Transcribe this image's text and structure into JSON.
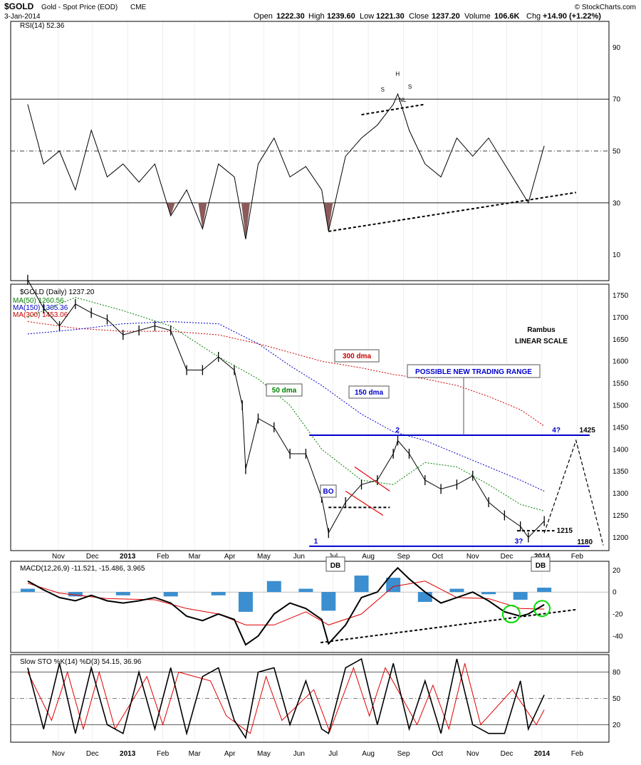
{
  "header": {
    "symbol": "$GOLD",
    "name": "Gold - Spot Price (EOD)",
    "exchange": "CME",
    "date": "3-Jan-2014",
    "open_label": "Open",
    "open": "1222.30",
    "high_label": "High",
    "high": "1239.60",
    "low_label": "Low",
    "low": "1221.30",
    "close_label": "Close",
    "close": "1237.20",
    "volume_label": "Volume",
    "volume": "106.6K",
    "chg_label": "Chg",
    "chg": "+14.90 (+1.22%)",
    "watermark": "© StockCharts.com"
  },
  "colors": {
    "price": "#000000",
    "ma50": "#008000",
    "ma150": "#0000cc",
    "ma300": "#cc0000",
    "rsi_fill": "#8b5a5a",
    "macd_hist": "#3b8fd0",
    "macd_signal": "#e00000",
    "trading_range": "#0000cc",
    "circle": "#00dd00",
    "grid": "#000000"
  },
  "chart_data": [
    {
      "type": "line",
      "title": "RSI(14) 52.36",
      "ylim": [
        0,
        100
      ],
      "y_ticks": [
        "90",
        "70",
        "50",
        "30",
        "10"
      ],
      "hlines": [
        70,
        50,
        30
      ],
      "series": [
        {
          "name": "RSI(14)",
          "x": [
            "2012-10-05",
            "2012-10-19",
            "2012-11-02",
            "2012-11-16",
            "2012-11-30",
            "2012-12-14",
            "2012-12-28",
            "2013-01-11",
            "2013-01-25",
            "2013-02-08",
            "2013-02-22",
            "2013-03-08",
            "2013-03-22",
            "2013-04-05",
            "2013-04-15",
            "2013-04-26",
            "2013-05-10",
            "2013-05-24",
            "2013-06-07",
            "2013-06-21",
            "2013-06-27",
            "2013-07-12",
            "2013-07-26",
            "2013-08-09",
            "2013-08-23",
            "2013-08-27",
            "2013-09-06",
            "2013-09-20",
            "2013-10-04",
            "2013-10-18",
            "2013-11-01",
            "2013-11-15",
            "2013-11-29",
            "2013-12-13",
            "2013-12-20",
            "2014-01-03"
          ],
          "values": [
            68,
            45,
            50,
            35,
            58,
            40,
            45,
            38,
            45,
            25,
            35,
            20,
            45,
            40,
            16,
            45,
            55,
            40,
            44,
            35,
            19,
            48,
            55,
            60,
            68,
            72,
            58,
            45,
            40,
            55,
            48,
            55,
            45,
            35,
            30,
            52
          ]
        }
      ],
      "pattern_labels": [
        "S",
        "H",
        "S",
        "NL"
      ]
    },
    {
      "type": "line",
      "title": "$GOLD (Daily) 1237.20",
      "legend": [
        "MA(50) 1260.56",
        "MA(150) 1305.36",
        "MA(300) 1453.06"
      ],
      "ylim": [
        1170,
        1775
      ],
      "y_ticks": [
        1750,
        1700,
        1650,
        1600,
        1550,
        1500,
        1450,
        1400,
        1350,
        1300,
        1250,
        1200
      ],
      "x_ticks": [
        "Nov",
        "Dec",
        "2013",
        "Feb",
        "Mar",
        "Apr",
        "May",
        "Jun",
        "Jul",
        "Aug",
        "Sep",
        "Oct",
        "Nov",
        "Dec",
        "2014",
        "Feb"
      ],
      "series": [
        {
          "name": "$GOLD",
          "x": [
            "2012-10-05",
            "2012-10-19",
            "2012-11-02",
            "2012-11-16",
            "2012-11-30",
            "2012-12-14",
            "2012-12-28",
            "2013-01-11",
            "2013-01-25",
            "2013-02-08",
            "2013-02-22",
            "2013-03-08",
            "2013-03-22",
            "2013-04-05",
            "2013-04-12",
            "2013-04-15",
            "2013-04-26",
            "2013-05-10",
            "2013-05-24",
            "2013-06-07",
            "2013-06-21",
            "2013-06-27",
            "2013-07-12",
            "2013-07-26",
            "2013-08-09",
            "2013-08-23",
            "2013-08-27",
            "2013-09-06",
            "2013-09-20",
            "2013-10-04",
            "2013-10-18",
            "2013-11-01",
            "2013-11-15",
            "2013-11-29",
            "2013-12-13",
            "2013-12-20",
            "2014-01-03"
          ],
          "values": [
            1785,
            1720,
            1680,
            1730,
            1710,
            1695,
            1660,
            1670,
            1680,
            1670,
            1580,
            1580,
            1610,
            1580,
            1500,
            1355,
            1470,
            1450,
            1390,
            1390,
            1290,
            1210,
            1280,
            1320,
            1330,
            1390,
            1420,
            1390,
            1330,
            1310,
            1320,
            1340,
            1280,
            1250,
            1225,
            1200,
            1237
          ]
        },
        {
          "name": "MA(50) 1260.56",
          "x": [
            "2012-10-05",
            "2012-11-16",
            "2012-12-28",
            "2013-02-08",
            "2013-03-22",
            "2013-04-26",
            "2013-05-24",
            "2013-06-21",
            "2013-07-26",
            "2013-08-23",
            "2013-09-20",
            "2013-10-18",
            "2013-11-15",
            "2013-12-13",
            "2014-01-03"
          ],
          "values": [
            1700,
            1745,
            1715,
            1680,
            1610,
            1560,
            1500,
            1400,
            1330,
            1320,
            1370,
            1360,
            1320,
            1275,
            1260
          ]
        },
        {
          "name": "MA(150) 1305.36",
          "x": [
            "2012-10-05",
            "2012-11-16",
            "2012-12-28",
            "2013-02-08",
            "2013-03-22",
            "2013-04-26",
            "2013-05-24",
            "2013-06-21",
            "2013-07-26",
            "2013-08-23",
            "2013-09-20",
            "2013-10-18",
            "2013-11-15",
            "2013-12-13",
            "2014-01-03"
          ],
          "values": [
            1662,
            1672,
            1685,
            1690,
            1685,
            1640,
            1590,
            1545,
            1480,
            1440,
            1420,
            1390,
            1360,
            1330,
            1305
          ]
        },
        {
          "name": "MA(300) 1453.06",
          "x": [
            "2012-10-05",
            "2012-11-16",
            "2012-12-28",
            "2013-02-08",
            "2013-03-22",
            "2013-04-26",
            "2013-05-24",
            "2013-06-21",
            "2013-07-26",
            "2013-08-23",
            "2013-09-20",
            "2013-10-18",
            "2013-11-15",
            "2013-12-13",
            "2014-01-03"
          ],
          "values": [
            1690,
            1675,
            1668,
            1668,
            1660,
            1640,
            1620,
            1600,
            1585,
            1570,
            1560,
            1545,
            1520,
            1490,
            1453
          ]
        }
      ],
      "annotations": {
        "author": "Rambus",
        "scale": "LINEAR SCALE",
        "ma300_label": "300 dma",
        "ma150_label": "150 dma",
        "ma50_label": "50 dma",
        "range_label": "POSSIBLE NEW TRADING RANGE",
        "bo_label": "BO",
        "db1_label": "DB",
        "db2_label": "DB",
        "pt1_label": "1",
        "pt2_label": "2",
        "pt3_label": "3?",
        "pt4_label": "4?",
        "lvl_1425": "1425",
        "lvl_1215": "1215",
        "lvl_1180": "1180",
        "range_top": 1432,
        "range_bottom": 1180,
        "neckline": 1268,
        "resistance_1215": 1215
      }
    },
    {
      "type": "line",
      "title": "MACD(12,26,9) -11.521, -15.486, 3.965",
      "ylim": [
        -55,
        28
      ],
      "y_ticks": [
        20,
        0,
        -20,
        -40
      ],
      "series": [
        {
          "name": "MACD",
          "x": [
            "2012-10-05",
            "2012-10-19",
            "2012-11-02",
            "2012-11-16",
            "2012-11-30",
            "2012-12-14",
            "2012-12-28",
            "2013-01-11",
            "2013-01-25",
            "2013-02-08",
            "2013-02-22",
            "2013-03-08",
            "2013-03-22",
            "2013-04-05",
            "2013-04-15",
            "2013-04-26",
            "2013-05-10",
            "2013-05-24",
            "2013-06-07",
            "2013-06-21",
            "2013-06-27",
            "2013-07-12",
            "2013-07-26",
            "2013-08-09",
            "2013-08-23",
            "2013-08-27",
            "2013-09-06",
            "2013-09-20",
            "2013-10-04",
            "2013-10-18",
            "2013-11-01",
            "2013-11-15",
            "2013-11-29",
            "2013-12-13",
            "2013-12-20",
            "2014-01-03"
          ],
          "values": [
            10,
            2,
            -5,
            -8,
            -3,
            -8,
            -10,
            -8,
            -5,
            -10,
            -22,
            -26,
            -20,
            -25,
            -48,
            -40,
            -20,
            -10,
            -15,
            -25,
            -47,
            -30,
            -5,
            0,
            18,
            22,
            12,
            0,
            -10,
            -5,
            0,
            -8,
            -18,
            -22,
            -20,
            -11.5
          ]
        },
        {
          "name": "Signal",
          "x": [
            "2012-10-05",
            "2012-11-02",
            "2012-12-14",
            "2013-01-25",
            "2013-02-22",
            "2013-03-22",
            "2013-04-15",
            "2013-05-10",
            "2013-06-07",
            "2013-06-27",
            "2013-07-26",
            "2013-08-23",
            "2013-09-20",
            "2013-10-18",
            "2013-11-15",
            "2013-12-13",
            "2014-01-03"
          ],
          "values": [
            8,
            -1,
            -6,
            -7,
            -15,
            -20,
            -30,
            -30,
            -18,
            -30,
            -20,
            5,
            10,
            -5,
            -6,
            -15,
            -15.5
          ]
        },
        {
          "name": "Histogram",
          "x": [
            "2012-10-05",
            "2012-11-16",
            "2012-12-28",
            "2013-02-08",
            "2013-03-22",
            "2013-04-15",
            "2013-05-10",
            "2013-06-07",
            "2013-06-27",
            "2013-07-26",
            "2013-08-23",
            "2013-09-20",
            "2013-10-18",
            "2013-11-15",
            "2013-12-13",
            "2014-01-03"
          ],
          "values": [
            3,
            -4,
            -3,
            -4,
            -3,
            -18,
            10,
            3,
            -17,
            15,
            13,
            -9,
            3,
            -2,
            -7,
            4
          ]
        }
      ]
    },
    {
      "type": "line",
      "title": "Slow STO %K(14) %D(3) 54.15, 36.96",
      "ylim": [
        0,
        100
      ],
      "y_ticks": [
        80,
        50,
        20
      ],
      "x_ticks": [
        "Nov",
        "Dec",
        "2013",
        "Feb",
        "Mar",
        "Apr",
        "May",
        "Jun",
        "Jul",
        "Aug",
        "Sep",
        "Oct",
        "Nov",
        "Dec",
        "2014",
        "Feb"
      ],
      "series": [
        {
          "name": "%K",
          "x": [
            "2012-10-05",
            "2012-10-19",
            "2012-11-02",
            "2012-11-16",
            "2012-11-30",
            "2012-12-14",
            "2012-12-28",
            "2013-01-11",
            "2013-01-25",
            "2013-02-08",
            "2013-02-22",
            "2013-03-08",
            "2013-03-22",
            "2013-04-05",
            "2013-04-15",
            "2013-04-26",
            "2013-05-10",
            "2013-05-24",
            "2013-06-07",
            "2013-06-21",
            "2013-06-27",
            "2013-07-12",
            "2013-07-26",
            "2013-08-09",
            "2013-08-23",
            "2013-09-06",
            "2013-09-20",
            "2013-10-04",
            "2013-10-18",
            "2013-11-01",
            "2013-11-15",
            "2013-11-29",
            "2013-12-13",
            "2013-12-20",
            "2014-01-03"
          ],
          "values": [
            85,
            15,
            90,
            10,
            85,
            20,
            10,
            80,
            15,
            85,
            10,
            75,
            85,
            25,
            5,
            80,
            85,
            20,
            70,
            15,
            10,
            85,
            95,
            20,
            90,
            15,
            70,
            10,
            95,
            20,
            10,
            10,
            70,
            15,
            54
          ]
        },
        {
          "name": "%D",
          "x": [
            "2012-10-05",
            "2012-10-26",
            "2012-11-09",
            "2012-11-23",
            "2012-12-07",
            "2012-12-21",
            "2013-01-18",
            "2013-02-01",
            "2013-02-15",
            "2013-03-15",
            "2013-03-29",
            "2013-04-19",
            "2013-05-03",
            "2013-05-17",
            "2013-06-14",
            "2013-06-28",
            "2013-07-19",
            "2013-08-02",
            "2013-08-16",
            "2013-09-13",
            "2013-09-27",
            "2013-10-11",
            "2013-10-25",
            "2013-11-08",
            "2013-12-06",
            "2013-12-27",
            "2014-01-03"
          ],
          "values": [
            80,
            25,
            80,
            15,
            80,
            15,
            75,
            20,
            80,
            70,
            30,
            10,
            75,
            25,
            60,
            12,
            85,
            30,
            85,
            20,
            65,
            15,
            90,
            20,
            60,
            20,
            37
          ]
        }
      ]
    }
  ]
}
